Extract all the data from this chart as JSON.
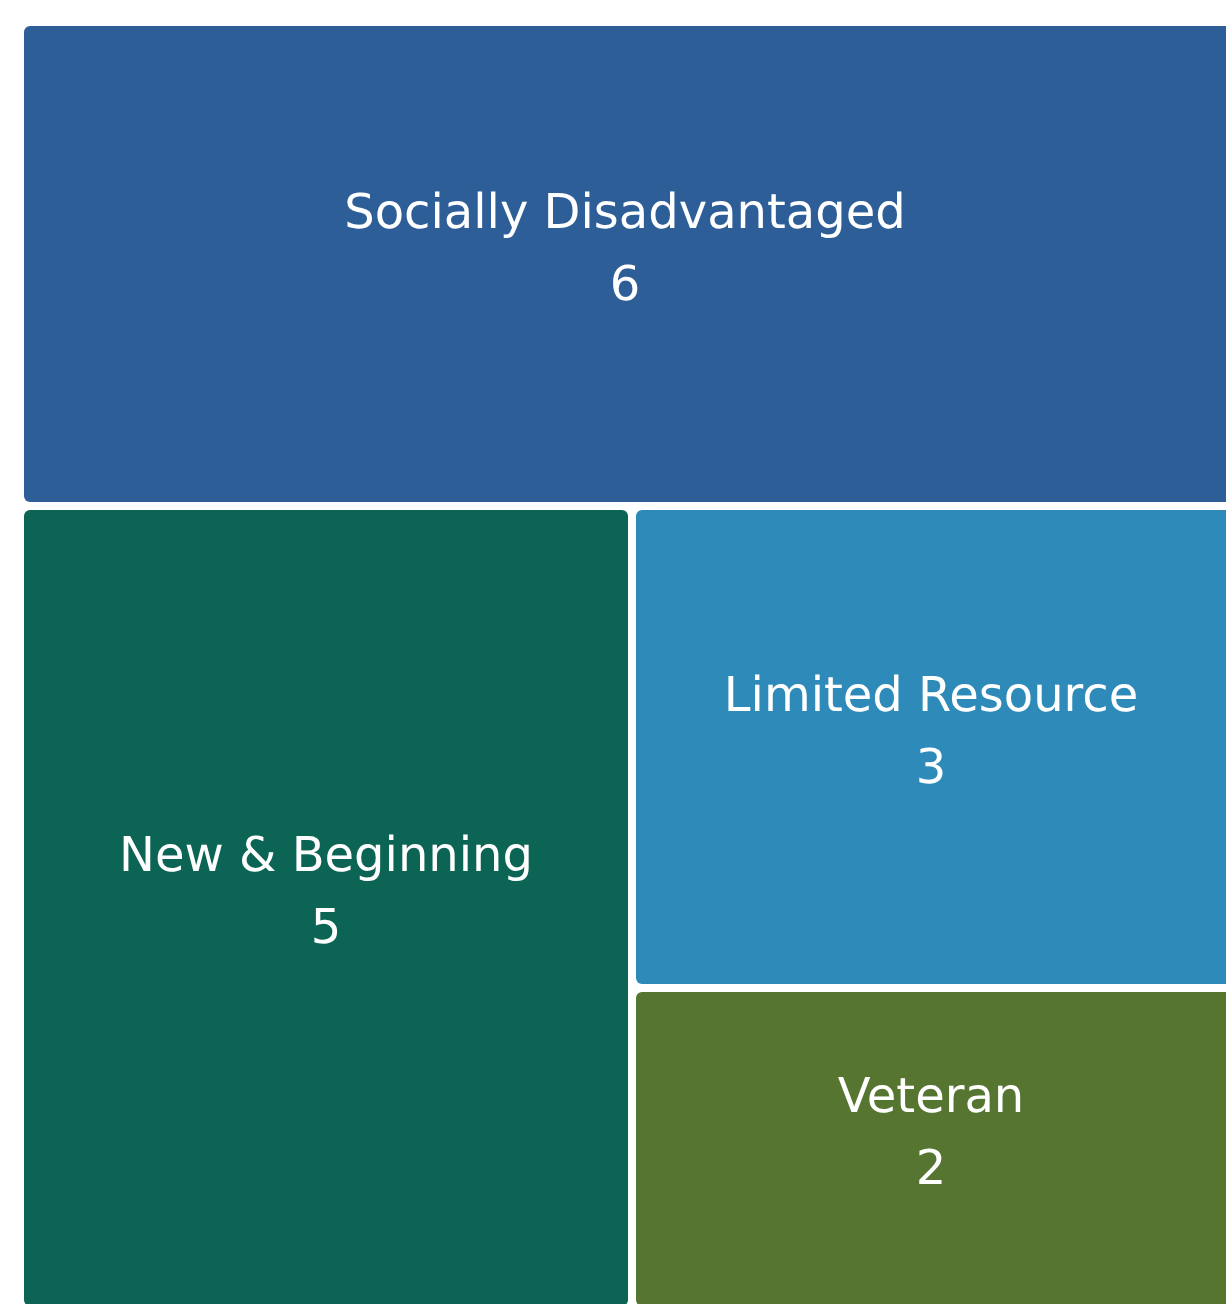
{
  "chart_data": {
    "type": "other",
    "categories": [
      "Socially Disadvantaged",
      "New & Beginning",
      "Limited Resource",
      "Veteran"
    ],
    "values": [
      6,
      5,
      3,
      2
    ],
    "colors": [
      "#2e5e97",
      "#0b6454",
      "#2e8ab8",
      "#567530"
    ],
    "data_labels": true
  }
}
